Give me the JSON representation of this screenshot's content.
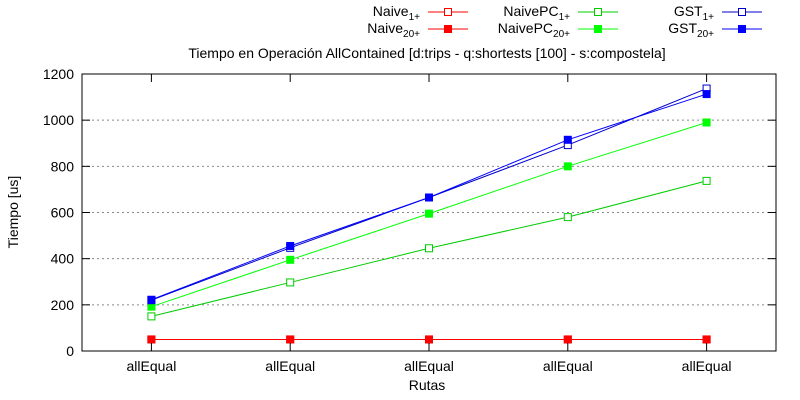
{
  "chart_data": {
    "type": "line",
    "title": "Tiempo en Operación AllContained [d:trips - q:shortests [100] - s:compostela]",
    "xlabel": "Rutas",
    "ylabel": "Tiempo [us]",
    "categories": [
      "allEqual",
      "allEqual",
      "allEqual",
      "allEqual",
      "allEqual"
    ],
    "ylim": [
      0,
      1200
    ],
    "yticks": [
      0,
      200,
      400,
      600,
      800,
      1000,
      1200
    ],
    "grid": "horizontal",
    "legend_position": "top-right",
    "series": [
      {
        "name_main": "Naive",
        "name_sub": "1+",
        "color": "#ff0000",
        "marker": "open-square",
        "values": [
          50,
          50,
          50,
          50,
          50
        ]
      },
      {
        "name_main": "Naive",
        "name_sub": "20+",
        "color": "#ff0000",
        "marker": "filled-square",
        "values": [
          50,
          50,
          50,
          50,
          50
        ]
      },
      {
        "name_main": "NaivePC",
        "name_sub": "1+",
        "color": "#00cc00",
        "marker": "open-square",
        "values": [
          150,
          297,
          445,
          580,
          737
        ]
      },
      {
        "name_main": "NaivePC",
        "name_sub": "20+",
        "color": "#00ff00",
        "marker": "filled-square",
        "values": [
          192,
          395,
          595,
          800,
          990
        ]
      },
      {
        "name_main": "GST",
        "name_sub": "1+",
        "color": "#0000cc",
        "marker": "open-square",
        "values": [
          220,
          447,
          665,
          892,
          1137
        ]
      },
      {
        "name_main": "GST",
        "name_sub": "20+",
        "color": "#0000ff",
        "marker": "filled-square",
        "values": [
          222,
          455,
          665,
          915,
          1113
        ]
      }
    ]
  }
}
